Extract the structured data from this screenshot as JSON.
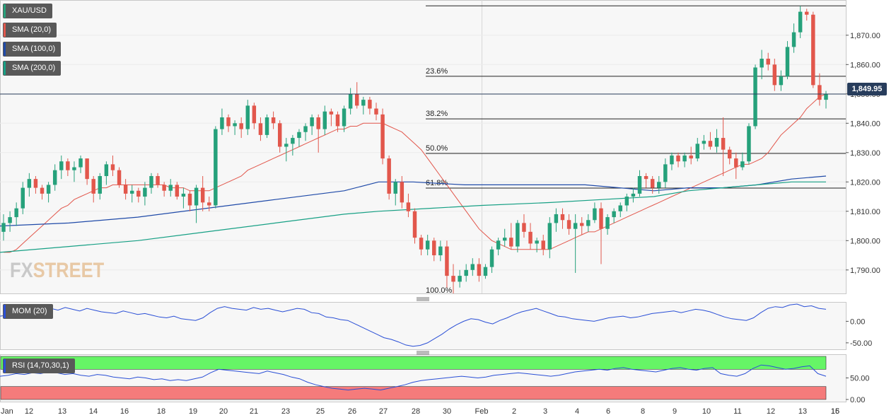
{
  "legend": {
    "symbol": "XAU/USD",
    "sma20": "SMA (20,0)",
    "sma100": "SMA (100,0)",
    "sma200": "SMA (200,0)",
    "mom": "MOM (20)",
    "rsi": "RSI (14,70,30,1)"
  },
  "colors": {
    "up": "#26a17b",
    "down": "#e2574c",
    "sma20": "#e2574c",
    "sma100": "#1f4aa8",
    "sma200": "#17a085",
    "mom": "#2a4fd6",
    "rsi": "#2a4fd6",
    "overbought": "#66f566",
    "oversold": "#f57b7b",
    "price_tag": "#283d5c"
  },
  "watermark": {
    "part1": "FX",
    "part2": "STREET"
  },
  "last_price_label": "1,849.95",
  "chart_data": {
    "type": "candlestick",
    "title": "",
    "price_axis": {
      "min": 1782,
      "max": 1882,
      "ticks": [
        "1,870.00",
        "1,860.00",
        "1,850.00",
        "1,840.00",
        "1,830.00",
        "1,820.00",
        "1,810.00",
        "1,800.00",
        "1,790.00"
      ],
      "tick_values": [
        1870,
        1860,
        1850,
        1840,
        1830,
        1820,
        1810,
        1800,
        1790
      ]
    },
    "mom_axis": {
      "ticks": [
        "0.00",
        "-50.00"
      ],
      "tick_values": [
        0,
        -50
      ],
      "range": [
        -65,
        45
      ]
    },
    "rsi_axis": {
      "ticks": [
        "50.00",
        "0.00"
      ],
      "tick_values": [
        50,
        0
      ],
      "range": [
        -5,
        105
      ]
    },
    "x_labels": [
      "Jan",
      "12",
      "13",
      "14",
      "16",
      "18",
      "19",
      "20",
      "21",
      "23",
      "25",
      "26",
      "27",
      "28",
      "30",
      "Feb",
      "2",
      "3",
      "4",
      "6",
      "8",
      "9",
      "10",
      "11",
      "12",
      "13",
      "15",
      "16"
    ],
    "last_price": 1849.95,
    "fibonacci": [
      {
        "label": "23.6%",
        "value": 1856.0
      },
      {
        "label": "38.2%",
        "value": 1841.5
      },
      {
        "label": "50.0%",
        "value": 1829.7
      },
      {
        "label": "61.8%",
        "value": 1817.9
      },
      {
        "label": "100.0%",
        "value": 1782.0
      }
    ],
    "fib_high": 1880.0,
    "candles": [
      [
        1803,
        1809,
        1800,
        1806
      ],
      [
        1806,
        1810,
        1803,
        1808
      ],
      [
        1808,
        1813,
        1805,
        1811
      ],
      [
        1811,
        1820,
        1809,
        1818
      ],
      [
        1818,
        1823,
        1815,
        1821
      ],
      [
        1821,
        1822,
        1816,
        1818
      ],
      [
        1818,
        1819,
        1814,
        1816
      ],
      [
        1816,
        1820,
        1813,
        1819
      ],
      [
        1819,
        1826,
        1817,
        1824
      ],
      [
        1824,
        1829,
        1821,
        1827
      ],
      [
        1827,
        1828,
        1822,
        1824
      ],
      [
        1824,
        1827,
        1820,
        1825
      ],
      [
        1825,
        1829,
        1823,
        1828
      ],
      [
        1828,
        1828,
        1819,
        1821
      ],
      [
        1821,
        1822,
        1813,
        1816
      ],
      [
        1816,
        1823,
        1814,
        1822
      ],
      [
        1822,
        1827,
        1819,
        1826
      ],
      [
        1826,
        1829,
        1822,
        1824
      ],
      [
        1824,
        1825,
        1818,
        1819
      ],
      [
        1819,
        1821,
        1814,
        1816
      ],
      [
        1816,
        1819,
        1813,
        1817
      ],
      [
        1817,
        1818,
        1813,
        1815
      ],
      [
        1815,
        1820,
        1812,
        1818
      ],
      [
        1818,
        1823,
        1816,
        1822
      ],
      [
        1822,
        1823,
        1818,
        1819
      ],
      [
        1819,
        1820,
        1815,
        1817
      ],
      [
        1817,
        1821,
        1815,
        1819
      ],
      [
        1819,
        1820,
        1814,
        1815
      ],
      [
        1815,
        1818,
        1811,
        1816
      ],
      [
        1816,
        1817,
        1810,
        1812
      ],
      [
        1812,
        1819,
        1806,
        1818
      ],
      [
        1818,
        1822,
        1810,
        1813
      ],
      [
        1813,
        1815,
        1810,
        1812
      ],
      [
        1812,
        1839,
        1811,
        1838
      ],
      [
        1838,
        1845,
        1836,
        1842
      ],
      [
        1842,
        1843,
        1837,
        1839
      ],
      [
        1839,
        1841,
        1836,
        1840
      ],
      [
        1840,
        1842,
        1835,
        1838
      ],
      [
        1838,
        1848,
        1836,
        1846
      ],
      [
        1846,
        1847,
        1838,
        1840
      ],
      [
        1840,
        1842,
        1834,
        1836
      ],
      [
        1836,
        1843,
        1835,
        1842
      ],
      [
        1842,
        1844,
        1838,
        1840
      ],
      [
        1840,
        1841,
        1830,
        1832
      ],
      [
        1832,
        1835,
        1827,
        1833
      ],
      [
        1833,
        1836,
        1829,
        1835
      ],
      [
        1835,
        1838,
        1832,
        1837
      ],
      [
        1837,
        1840,
        1834,
        1839
      ],
      [
        1839,
        1843,
        1836,
        1842
      ],
      [
        1842,
        1843,
        1830,
        1838
      ],
      [
        1838,
        1846,
        1836,
        1844
      ],
      [
        1844,
        1845,
        1839,
        1843
      ],
      [
        1843,
        1844,
        1837,
        1839
      ],
      [
        1839,
        1846,
        1837,
        1845
      ],
      [
        1845,
        1852,
        1843,
        1850
      ],
      [
        1850,
        1854,
        1845,
        1846
      ],
      [
        1846,
        1849,
        1843,
        1848
      ],
      [
        1848,
        1849,
        1843,
        1845
      ],
      [
        1845,
        1847,
        1841,
        1843
      ],
      [
        1843,
        1845,
        1826,
        1828
      ],
      [
        1828,
        1829,
        1814,
        1816
      ],
      [
        1816,
        1821,
        1812,
        1820
      ],
      [
        1820,
        1822,
        1811,
        1813
      ],
      [
        1813,
        1816,
        1808,
        1810
      ],
      [
        1810,
        1811,
        1799,
        1801
      ],
      [
        1801,
        1802,
        1795,
        1797
      ],
      [
        1797,
        1802,
        1795,
        1800
      ],
      [
        1800,
        1801,
        1793,
        1795
      ],
      [
        1795,
        1800,
        1793,
        1798
      ],
      [
        1798,
        1800,
        1784,
        1788
      ],
      [
        1788,
        1792,
        1782,
        1786
      ],
      [
        1786,
        1790,
        1784,
        1788
      ],
      [
        1788,
        1792,
        1786,
        1790
      ],
      [
        1790,
        1794,
        1788,
        1792
      ],
      [
        1792,
        1794,
        1786,
        1788
      ],
      [
        1788,
        1792,
        1787,
        1791
      ],
      [
        1791,
        1798,
        1789,
        1797
      ],
      [
        1797,
        1801,
        1795,
        1800
      ],
      [
        1800,
        1804,
        1798,
        1801
      ],
      [
        1801,
        1806,
        1797,
        1798
      ],
      [
        1798,
        1807,
        1796,
        1806
      ],
      [
        1806,
        1809,
        1801,
        1803
      ],
      [
        1803,
        1806,
        1797,
        1799
      ],
      [
        1799,
        1801,
        1796,
        1800
      ],
      [
        1800,
        1802,
        1795,
        1797
      ],
      [
        1797,
        1808,
        1794,
        1806
      ],
      [
        1806,
        1811,
        1803,
        1809
      ],
      [
        1809,
        1811,
        1804,
        1807
      ],
      [
        1807,
        1809,
        1802,
        1804
      ],
      [
        1804,
        1809,
        1789,
        1806
      ],
      [
        1806,
        1808,
        1802,
        1805
      ],
      [
        1805,
        1809,
        1803,
        1807
      ],
      [
        1807,
        1813,
        1806,
        1811
      ],
      [
        1811,
        1813,
        1792,
        1804
      ],
      [
        1804,
        1809,
        1802,
        1808
      ],
      [
        1808,
        1811,
        1806,
        1810
      ],
      [
        1810,
        1813,
        1808,
        1812
      ],
      [
        1812,
        1816,
        1810,
        1815
      ],
      [
        1815,
        1818,
        1813,
        1816
      ],
      [
        1816,
        1824,
        1815,
        1822
      ],
      [
        1822,
        1823,
        1818,
        1821
      ],
      [
        1821,
        1822,
        1816,
        1818
      ],
      [
        1818,
        1822,
        1816,
        1820
      ],
      [
        1820,
        1828,
        1818,
        1826
      ],
      [
        1826,
        1830,
        1824,
        1829
      ],
      [
        1829,
        1830,
        1825,
        1827
      ],
      [
        1827,
        1830,
        1825,
        1829
      ],
      [
        1829,
        1832,
        1826,
        1828
      ],
      [
        1828,
        1835,
        1827,
        1833
      ],
      [
        1833,
        1836,
        1831,
        1834
      ],
      [
        1834,
        1837,
        1831,
        1832
      ],
      [
        1832,
        1838,
        1830,
        1835
      ],
      [
        1835,
        1842,
        1822,
        1831
      ],
      [
        1831,
        1832,
        1826,
        1828
      ],
      [
        1828,
        1830,
        1821,
        1825
      ],
      [
        1825,
        1830,
        1824,
        1827
      ],
      [
        1827,
        1840,
        1826,
        1839
      ],
      [
        1839,
        1860,
        1838,
        1859
      ],
      [
        1859,
        1865,
        1855,
        1862
      ],
      [
        1862,
        1864,
        1858,
        1860
      ],
      [
        1860,
        1862,
        1851,
        1853
      ],
      [
        1853,
        1858,
        1851,
        1856
      ],
      [
        1856,
        1868,
        1855,
        1866
      ],
      [
        1866,
        1874,
        1864,
        1871
      ],
      [
        1871,
        1880,
        1869,
        1878
      ],
      [
        1878,
        1879,
        1875,
        1877
      ],
      [
        1877,
        1878,
        1852,
        1853
      ],
      [
        1853,
        1857,
        1846,
        1848
      ],
      [
        1848,
        1851,
        1845,
        1850
      ]
    ],
    "sma20": [
      1796,
      1796,
      1797,
      1799,
      1801,
      1803,
      1805,
      1807,
      1809,
      1811,
      1812,
      1814,
      1815,
      1816,
      1817,
      1818,
      1818,
      1819,
      1819,
      1819,
      1819,
      1819,
      1819,
      1819,
      1819,
      1819,
      1818,
      1818,
      1818,
      1817,
      1817,
      1817,
      1817,
      1818,
      1819,
      1820,
      1821,
      1822,
      1824,
      1825,
      1826,
      1827,
      1828,
      1829,
      1830,
      1831,
      1832,
      1833,
      1834,
      1835,
      1836,
      1837,
      1838,
      1838,
      1839,
      1839,
      1840,
      1840,
      1840,
      1840,
      1839,
      1838,
      1837,
      1835,
      1833,
      1831,
      1828,
      1825,
      1822,
      1819,
      1816,
      1813,
      1810,
      1807,
      1804,
      1802,
      1800,
      1799,
      1798,
      1797,
      1797,
      1797,
      1797,
      1797,
      1797,
      1797,
      1798,
      1799,
      1800,
      1801,
      1802,
      1803,
      1803,
      1804,
      1805,
      1806,
      1807,
      1808,
      1809,
      1810,
      1811,
      1812,
      1813,
      1814,
      1815,
      1816,
      1817,
      1818,
      1819,
      1820,
      1821,
      1822,
      1823,
      1824,
      1825,
      1826,
      1826,
      1827,
      1828,
      1830,
      1833,
      1836,
      1838,
      1840,
      1842,
      1845,
      1847,
      1849,
      1850,
      1851
    ],
    "sma100_points": [
      [
        0,
        1805
      ],
      [
        20,
        1806
      ],
      [
        40,
        1808
      ],
      [
        60,
        1811
      ],
      [
        80,
        1814
      ],
      [
        100,
        1817
      ],
      [
        110,
        1820
      ],
      [
        120,
        1820
      ],
      [
        135,
        1819
      ],
      [
        150,
        1819
      ],
      [
        170,
        1819
      ],
      [
        180,
        1818
      ],
      [
        190,
        1817
      ],
      [
        200,
        1818
      ],
      [
        210,
        1818
      ],
      [
        220,
        1819
      ],
      [
        230,
        1821
      ],
      [
        240,
        1822
      ]
    ],
    "sma200_points": [
      [
        0,
        1796
      ],
      [
        20,
        1798
      ],
      [
        40,
        1800
      ],
      [
        60,
        1803
      ],
      [
        80,
        1806
      ],
      [
        100,
        1809
      ],
      [
        110,
        1810
      ],
      [
        125,
        1811
      ],
      [
        140,
        1812
      ],
      [
        160,
        1813
      ],
      [
        175,
        1814
      ],
      [
        190,
        1815
      ],
      [
        200,
        1817
      ],
      [
        210,
        1818
      ],
      [
        220,
        1819
      ],
      [
        230,
        1820
      ],
      [
        240,
        1820
      ]
    ],
    "mom": [
      12,
      14,
      20,
      18,
      25,
      22,
      28,
      30,
      26,
      32,
      28,
      24,
      30,
      26,
      22,
      20,
      18,
      24,
      20,
      16,
      18,
      14,
      10,
      8,
      12,
      6,
      4,
      2,
      8,
      20,
      30,
      34,
      30,
      28,
      26,
      32,
      28,
      30,
      26,
      22,
      26,
      30,
      28,
      20,
      18,
      10,
      8,
      4,
      2,
      -6,
      -14,
      -22,
      -30,
      -38,
      -42,
      -48,
      -55,
      -58,
      -56,
      -50,
      -40,
      -30,
      -18,
      -8,
      0,
      6,
      4,
      -2,
      -6,
      2,
      8,
      16,
      22,
      26,
      30,
      24,
      18,
      12,
      10,
      6,
      4,
      2,
      0,
      4,
      8,
      10,
      12,
      8,
      10,
      14,
      18,
      20,
      22,
      24,
      20,
      24,
      28,
      26,
      22,
      16,
      10,
      6,
      4,
      2,
      8,
      20,
      30,
      34,
      32,
      38,
      40,
      34,
      36,
      30,
      28
    ],
    "rsi": [
      54,
      56,
      60,
      58,
      62,
      60,
      64,
      62,
      58,
      60,
      56,
      54,
      58,
      56,
      52,
      50,
      48,
      52,
      50,
      46,
      48,
      44,
      46,
      44,
      48,
      52,
      62,
      70,
      68,
      66,
      64,
      62,
      60,
      66,
      62,
      58,
      52,
      48,
      40,
      34,
      30,
      26,
      24,
      22,
      24,
      26,
      24,
      22,
      26,
      30,
      34,
      40,
      44,
      46,
      48,
      50,
      52,
      54,
      52,
      50,
      52,
      56,
      58,
      60,
      62,
      60,
      58,
      56,
      54,
      56,
      60,
      64,
      66,
      68,
      70,
      68,
      72,
      74,
      70,
      68,
      66,
      64,
      68,
      72,
      74,
      70,
      68,
      72,
      74,
      60,
      56,
      54,
      60,
      72,
      80,
      78,
      74,
      70,
      72,
      76,
      78,
      60,
      54
    ]
  }
}
